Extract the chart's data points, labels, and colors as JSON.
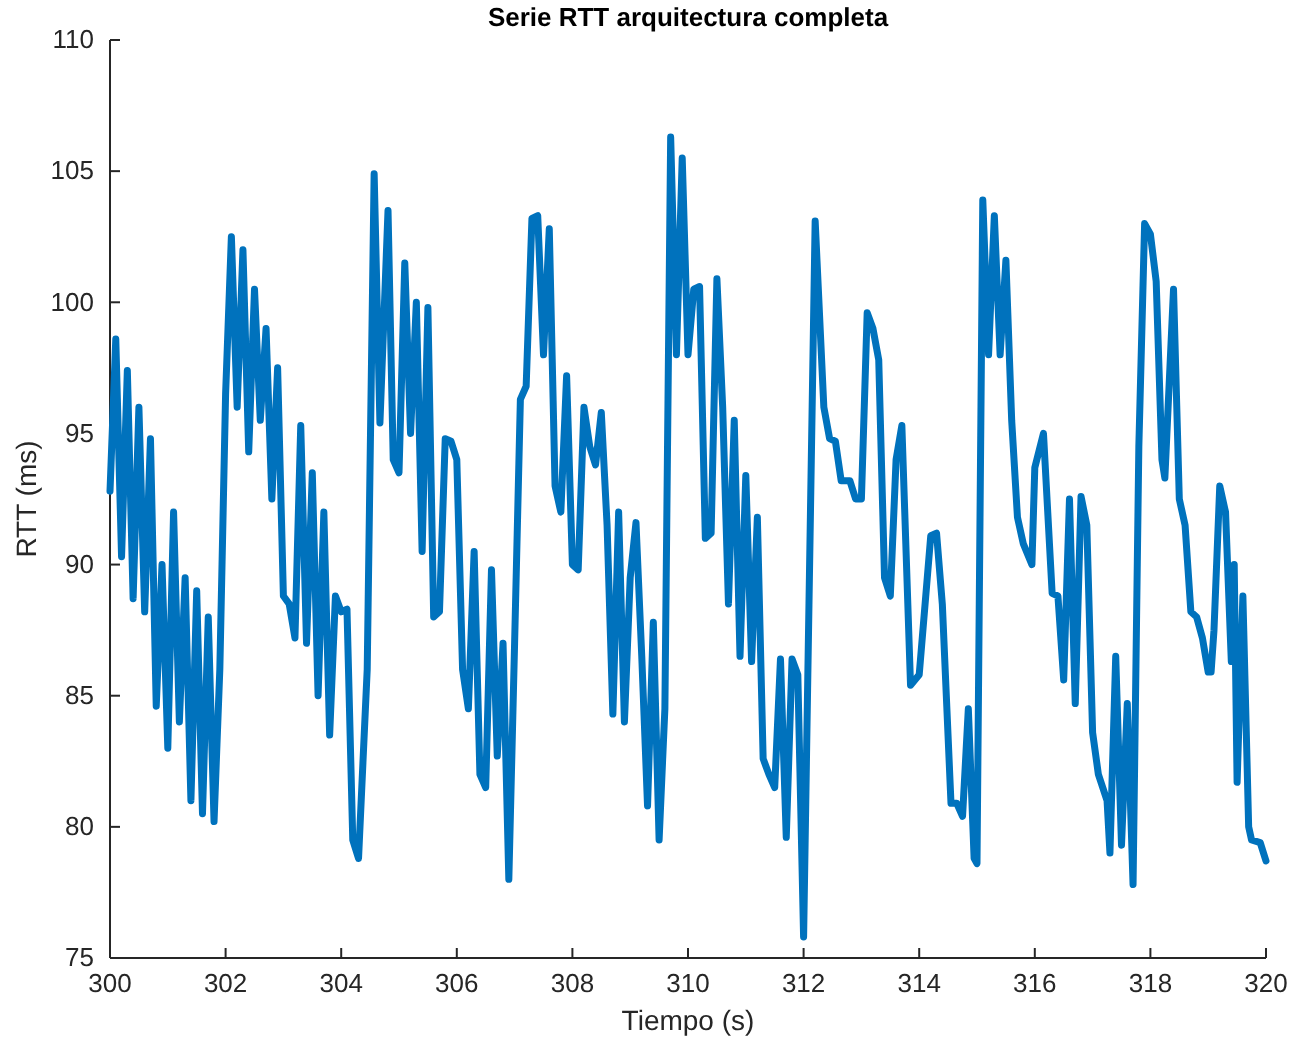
{
  "chart_data": {
    "type": "line",
    "title": "Serie RTT arquitectura completa",
    "xlabel": "Tiempo (s)",
    "ylabel": "RTT (ms)",
    "xlim": [
      300,
      320
    ],
    "xticks": [
      300,
      302,
      304,
      306,
      308,
      310,
      312,
      314,
      316,
      318,
      320
    ],
    "ylim": [
      75,
      110
    ],
    "yticks": [
      75,
      80,
      85,
      90,
      95,
      100,
      105,
      110
    ],
    "grid": false,
    "line_style": "solid",
    "marker": "none",
    "series": [
      {
        "color": "#0072bd",
        "x": [
          300,
          300.1,
          300.2,
          300.3,
          300.4,
          300.5,
          300.6,
          300.7,
          300.8,
          300.9,
          301,
          301.1,
          301.2,
          301.3,
          301.4,
          301.5,
          301.6,
          301.7,
          301.8,
          301.9,
          302,
          302.1,
          302.2,
          302.3,
          302.4,
          302.5,
          302.6,
          302.7,
          302.8,
          302.9,
          303,
          303.1,
          303.2,
          303.3,
          303.4,
          303.5,
          303.6,
          303.7,
          303.8,
          303.9,
          304,
          304.1,
          304.2,
          304.3,
          304.45,
          304.57,
          304.67,
          304.81,
          304.9,
          305,
          305.1,
          305.2,
          305.3,
          305.4,
          305.5,
          305.6,
          305.7,
          305.8,
          305.9,
          306,
          306.1,
          306.2,
          306.3,
          306.4,
          306.5,
          306.6,
          306.7,
          306.8,
          306.9,
          307,
          307.1,
          307.2,
          307.3,
          307.4,
          307.5,
          307.6,
          307.7,
          307.8,
          307.9,
          308,
          308.1,
          308.2,
          308.3,
          308.4,
          308.5,
          308.6,
          308.7,
          308.8,
          308.9,
          309,
          309.1,
          309.2,
          309.3,
          309.4,
          309.5,
          309.6,
          309.7,
          309.8,
          309.9,
          310,
          310.1,
          310.2,
          310.3,
          310.4,
          310.5,
          310.6,
          310.7,
          310.8,
          310.9,
          311,
          311.1,
          311.2,
          311.3,
          311.4,
          311.5,
          311.6,
          311.7,
          311.8,
          311.9,
          312,
          312.2,
          312.35,
          312.45,
          312.55,
          312.65,
          312.8,
          312.9,
          313,
          313.1,
          313.2,
          313.3,
          313.4,
          313.5,
          313.6,
          313.7,
          313.85,
          314,
          314.2,
          314.3,
          314.4,
          314.55,
          314.65,
          314.75,
          314.85,
          314.95,
          315,
          315.1,
          315.2,
          315.3,
          315.4,
          315.5,
          315.6,
          315.7,
          315.8,
          315.95,
          316,
          316.15,
          316.3,
          316.4,
          316.5,
          316.6,
          316.7,
          316.8,
          316.9,
          317,
          317.1,
          317.25,
          317.3,
          317.4,
          317.5,
          317.6,
          317.7,
          317.8,
          317.9,
          318,
          318.1,
          318.2,
          318.25,
          318.4,
          318.5,
          318.6,
          318.7,
          318.8,
          318.9,
          319,
          319.05,
          319.1,
          319.2,
          319.3,
          319.4,
          319.45,
          319.5,
          319.6,
          319.7,
          319.75,
          319.9,
          320
        ],
        "values": [
          92.8,
          98.6,
          90.3,
          97.4,
          88.7,
          96,
          88.2,
          94.8,
          84.6,
          90,
          83,
          92,
          84,
          89.5,
          81,
          89,
          80.5,
          88,
          80.2,
          86,
          96.5,
          102.5,
          96,
          102,
          94.3,
          100.5,
          95.5,
          99,
          92.5,
          97.5,
          88.8,
          88.5,
          87.2,
          95.3,
          87,
          93.5,
          85,
          92,
          83.5,
          88.8,
          88.2,
          88.3,
          79.5,
          78.8,
          86,
          104.9,
          95.4,
          103.5,
          94,
          93.5,
          101.5,
          95,
          100,
          90.5,
          99.8,
          88,
          88.2,
          94.8,
          94.7,
          94,
          86,
          84.5,
          90.5,
          82,
          81.5,
          89.8,
          82.7,
          87,
          78,
          87,
          96.3,
          96.8,
          103.2,
          103.3,
          98,
          102.8,
          93,
          92,
          97.2,
          90,
          89.8,
          96,
          94.5,
          93.8,
          95.8,
          91.5,
          84.3,
          92,
          84,
          89.5,
          91.6,
          86.5,
          80.8,
          87.8,
          79.5,
          84.5,
          106.3,
          98,
          105.5,
          98,
          100.5,
          100.6,
          91,
          91.2,
          100.9,
          96,
          88.5,
          95.5,
          86.5,
          93.4,
          86.3,
          91.8,
          82.6,
          82,
          81.5,
          86.4,
          79.6,
          86.4,
          85.8,
          75.8,
          103.1,
          96,
          94.8,
          94.7,
          93.2,
          93.2,
          92.5,
          92.5,
          99.6,
          99,
          97.8,
          89.5,
          88.8,
          94,
          95.3,
          85.4,
          85.8,
          91.1,
          91.2,
          88.5,
          80.9,
          80.9,
          80.4,
          84.5,
          78.8,
          78.6,
          103.9,
          98,
          103.3,
          98,
          101.6,
          95.5,
          91.8,
          90.8,
          90,
          93.7,
          95,
          88.9,
          88.8,
          85.6,
          92.5,
          84.7,
          92.6,
          91.5,
          83.6,
          82,
          81,
          79,
          86.5,
          79.3,
          84.7,
          77.8,
          94.5,
          103,
          102.6,
          100.8,
          94,
          93.3,
          100.5,
          92.5,
          91.5,
          88.2,
          88,
          87.2,
          85.9,
          85.9,
          87.5,
          93,
          92,
          86.3,
          90,
          81.7,
          88.8,
          80,
          79.5,
          79.4,
          78.7
        ]
      }
    ]
  }
}
